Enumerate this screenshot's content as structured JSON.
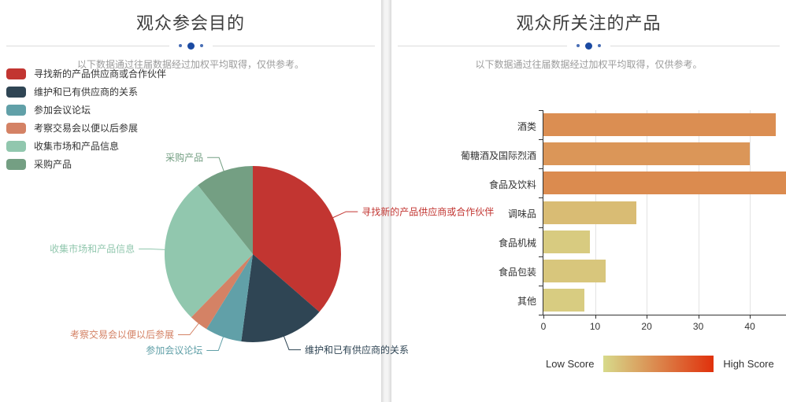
{
  "theme": {
    "accent": "#1b4aa2",
    "title_color": "#3d3d3d",
    "subtitle_color": "#9b9b9b",
    "text_color": "#333333",
    "axis_color": "#333333",
    "grid_line_color": "#e3e3e3",
    "header_line_color": "#dcdcdc",
    "panel_divider_color": "#ececec"
  },
  "panels": [
    {
      "title": "观众参会目的",
      "subtitle": "以下数据通过往届数据经过加权平均取得，仅供参考。"
    },
    {
      "title": "观众所关注的产品",
      "subtitle": "以下数据通过往届数据经过加权平均取得，仅供参考。"
    }
  ],
  "chart_data": [
    {
      "type": "pie",
      "title": "观众参会目的",
      "legend_position": "top-left-vertical",
      "label_position": "outside-with-leader-lines",
      "items": [
        {
          "name": "寻找新的产品供应商或合作伙伴",
          "value": 36.4,
          "color": "#c23531"
        },
        {
          "name": "维护和已有供应商的关系",
          "value": 15.7,
          "color": "#2f4554"
        },
        {
          "name": "参加会议论坛",
          "value": 6.7,
          "color": "#61a0a8"
        },
        {
          "name": "考察交易会以便以后参展",
          "value": 3.5,
          "color": "#d48265"
        },
        {
          "name": "收集市场和产品信息",
          "value": 27.0,
          "color": "#91c7ae"
        },
        {
          "name": "采购产品",
          "value": 10.7,
          "color": "#749f83"
        }
      ]
    },
    {
      "type": "bar",
      "title": "观众所关注的产品",
      "orientation": "horizontal",
      "categories": [
        "酒类",
        "葡糖酒及国际烈酒",
        "食品及饮料",
        "调味品",
        "食品机械",
        "食品包装",
        "其他"
      ],
      "values": [
        45,
        40,
        47,
        18,
        9,
        12,
        8
      ],
      "xlim": [
        0,
        47
      ],
      "x_ticks": [
        0,
        10,
        20,
        30,
        40
      ],
      "grid": true,
      "visual_map": {
        "low_label": "Low Score",
        "high_label": "High Score",
        "low_color": "#d7da8b",
        "high_color": "#e0310c",
        "min": 0,
        "max": 100,
        "position": "bottom-center"
      }
    }
  ]
}
